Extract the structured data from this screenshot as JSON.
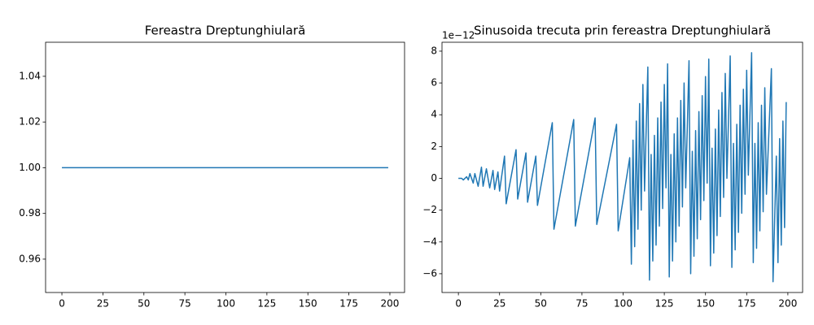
{
  "chart_data": [
    {
      "type": "line",
      "title": "Fereastra Dreptunghiulară",
      "color": "#1f77b4",
      "x": [
        0,
        199
      ],
      "values": [
        1,
        1
      ],
      "xlim": [
        -9.95,
        208.95
      ],
      "xticks": [
        0,
        25,
        50,
        75,
        100,
        125,
        150,
        175,
        200
      ],
      "ylim": [
        0.9454,
        1.0549
      ],
      "yticks": [
        0.96,
        0.98,
        {
          "value": 1,
          "label": "1.00"
        },
        1.02,
        1.04
      ]
    },
    {
      "type": "line",
      "title": "Sinusoida trecuta prin fereastra Dreptunghiulară",
      "color": "#1f77b4",
      "y_offset_label": "1e−12",
      "x": [
        0,
        2,
        3,
        5,
        6,
        7,
        9,
        10,
        12,
        14,
        15,
        17,
        19,
        21,
        22,
        24,
        25,
        28,
        29,
        35,
        36,
        41,
        42,
        47,
        48,
        57,
        58,
        70,
        71,
        83,
        84,
        96,
        97,
        104,
        105,
        106,
        107,
        108,
        109,
        110,
        111,
        112,
        113,
        115,
        116,
        117,
        118,
        119,
        120,
        121,
        122,
        123,
        124,
        125,
        126,
        127,
        128,
        129,
        130,
        131,
        132,
        133,
        134,
        135,
        136,
        137,
        138,
        140,
        141,
        142,
        143,
        144,
        145,
        146,
        147,
        148,
        149,
        150,
        151,
        152,
        153,
        154,
        155,
        156,
        157,
        158,
        159,
        160,
        161,
        162,
        163,
        165,
        166,
        167,
        168,
        169,
        170,
        171,
        172,
        173,
        174,
        175,
        176,
        178,
        179,
        180,
        181,
        182,
        183,
        184,
        185,
        186,
        187,
        190,
        191,
        193,
        194,
        195,
        196,
        197,
        198,
        199
      ],
      "values": [
        0,
        0,
        -0.1,
        0.1,
        -0.1,
        0.3,
        -0.3,
        0.3,
        -0.5,
        0.7,
        -0.5,
        0.6,
        -0.6,
        0.5,
        -0.7,
        0.4,
        -0.8,
        1.4,
        -1.6,
        1.8,
        -1.3,
        1.6,
        -1.5,
        1.4,
        -1.7,
        3.5,
        -3.2,
        3.7,
        -3.0,
        3.8,
        -2.9,
        3.4,
        -3.3,
        1.3,
        -5.4,
        2.4,
        -4.3,
        3.6,
        -3.2,
        4.7,
        -2.0,
        5.9,
        -0.8,
        7.0,
        -6.4,
        1.5,
        -5.2,
        2.7,
        -4.2,
        3.8,
        -3.0,
        4.8,
        -1.9,
        5.9,
        -0.6,
        7.2,
        -6.2,
        1.5,
        -5.2,
        2.8,
        -4.0,
        3.8,
        -3.0,
        4.9,
        -1.8,
        6.0,
        -0.6,
        7.4,
        -6.0,
        1.7,
        -4.9,
        3.0,
        -3.8,
        4.2,
        -2.6,
        5.2,
        -1.4,
        6.4,
        -0.3,
        7.5,
        -5.5,
        1.9,
        -4.7,
        3.1,
        -3.6,
        4.3,
        -2.4,
        5.4,
        -1.2,
        6.6,
        0.0,
        7.7,
        -5.6,
        2.2,
        -4.5,
        3.4,
        -3.4,
        4.6,
        -2.2,
        5.6,
        -1.0,
        6.8,
        0.2,
        7.9,
        -5.3,
        2.2,
        -4.4,
        3.5,
        -3.3,
        4.6,
        -2.1,
        5.7,
        -1.0,
        6.9,
        -6.5,
        1.4,
        -5.3,
        2.5,
        -4.2,
        3.6,
        -3.1,
        4.8
      ],
      "xlim": [
        -9.95,
        208.95
      ],
      "xticks": [
        0,
        25,
        50,
        75,
        100,
        125,
        150,
        175,
        200
      ],
      "ylim": [
        -7.18,
        8.56
      ],
      "yticks": [
        {
          "value": -6,
          "label": "−6"
        },
        {
          "value": -4,
          "label": "−4"
        },
        {
          "value": -2,
          "label": "−2"
        },
        0,
        2,
        4,
        6,
        8
      ]
    }
  ]
}
